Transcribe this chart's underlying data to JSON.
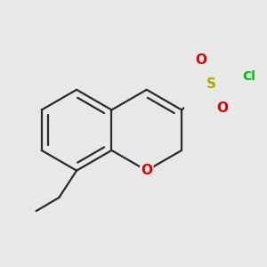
{
  "bg_color": "#e8e8e8",
  "bond_color": "#2a2a2a",
  "bond_width": 1.6,
  "atom_colors": {
    "O": "#dd0000",
    "S": "#aaaa00",
    "Cl": "#00bb00"
  },
  "font_size_O": 11,
  "font_size_S": 11,
  "font_size_Cl": 10
}
